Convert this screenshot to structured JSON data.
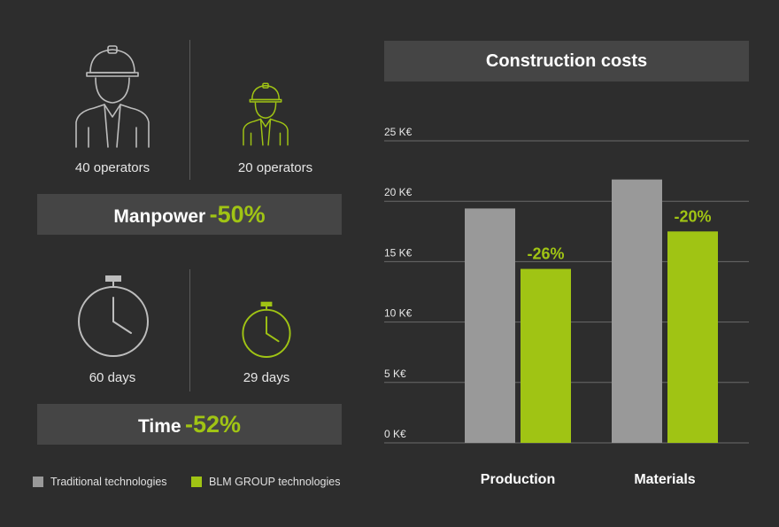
{
  "manpower": {
    "traditional_caption": "40 operators",
    "blm_caption": "20 operators",
    "label": "Manpower",
    "percent": "-50%"
  },
  "time": {
    "traditional_caption": "60 days",
    "blm_caption": "29 days",
    "label": "Time",
    "percent": "-52%"
  },
  "legend": {
    "traditional": "Traditional technologies",
    "blm": "BLM GROUP technologies"
  },
  "colors": {
    "background": "#2d2d2d",
    "panel": "#454545",
    "traditional": "#999999",
    "blm": "#a0c414"
  },
  "chart_data": {
    "type": "bar",
    "title": "Construction costs",
    "categories": [
      "Production",
      "Materials"
    ],
    "series": [
      {
        "name": "Traditional technologies",
        "values": [
          19.4,
          21.8
        ]
      },
      {
        "name": "BLM GROUP technologies",
        "values": [
          14.4,
          17.5
        ]
      }
    ],
    "data_labels": [
      null,
      "-26%",
      null,
      "-20%"
    ],
    "bar_labels": {
      "Production": "-26%",
      "Materials": "-20%"
    },
    "ylim": [
      0,
      25
    ],
    "yticks": [
      0,
      5,
      10,
      15,
      20,
      25
    ],
    "ytick_labels": [
      "0 K€",
      "5 K€",
      "10 K€",
      "15 K€",
      "20 K€",
      "25 K€"
    ],
    "grid": true,
    "legend_position": "bottom-left"
  }
}
